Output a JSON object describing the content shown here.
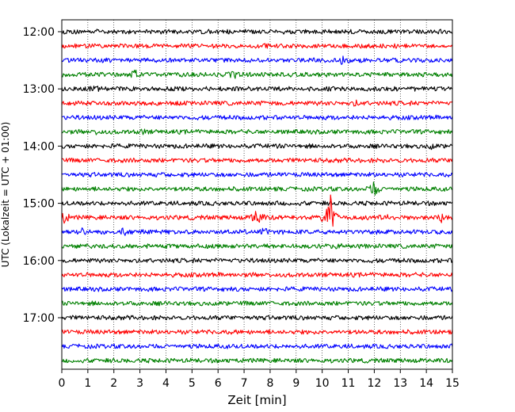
{
  "chart_data": {
    "type": "line",
    "xlabel": "Zeit  [min]",
    "ylabel": "UTC (Lokalzeit = UTC + 01:00)",
    "xlim": [
      0,
      15
    ],
    "x_ticks": [
      "0",
      "1",
      "2",
      "3",
      "4",
      "5",
      "6",
      "7",
      "8",
      "9",
      "10",
      "11",
      "12",
      "13",
      "14",
      "15"
    ],
    "y_ticks": [
      "12:00",
      "13:00",
      "14:00",
      "15:00",
      "16:00",
      "17:00"
    ],
    "grid": "vertical dotted",
    "colors": [
      "#000000",
      "#ff0000",
      "#0000ff",
      "#008000"
    ],
    "traces": [
      {
        "start": "12:00",
        "color": "#000000",
        "events": [
          {
            "t": 1.5,
            "amp": 0.15
          }
        ]
      },
      {
        "start": "12:15",
        "color": "#ff0000",
        "events": [
          {
            "t": 7.8,
            "amp": 0.2
          }
        ]
      },
      {
        "start": "12:30",
        "color": "#0000ff",
        "events": [
          {
            "t": 10.8,
            "amp": 0.35
          }
        ]
      },
      {
        "start": "12:45",
        "color": "#008000",
        "events": [
          {
            "t": 2.8,
            "amp": 0.4
          },
          {
            "t": 6.6,
            "amp": 0.3
          }
        ]
      },
      {
        "start": "13:00",
        "color": "#000000",
        "events": [
          {
            "t": 1.3,
            "amp": 0.15
          }
        ]
      },
      {
        "start": "13:15",
        "color": "#ff0000",
        "events": [
          {
            "t": 11.3,
            "amp": 0.15
          }
        ]
      },
      {
        "start": "13:30",
        "color": "#0000ff",
        "events": []
      },
      {
        "start": "13:45",
        "color": "#008000",
        "events": [
          {
            "t": 1.4,
            "amp": 0.15
          },
          {
            "t": 3.1,
            "amp": 0.15
          }
        ]
      },
      {
        "start": "14:00",
        "color": "#000000",
        "events": [
          {
            "t": 14.2,
            "amp": 0.15
          }
        ]
      },
      {
        "start": "14:15",
        "color": "#ff0000",
        "events": []
      },
      {
        "start": "14:30",
        "color": "#0000ff",
        "events": []
      },
      {
        "start": "14:45",
        "color": "#008000",
        "events": [
          {
            "t": 12.0,
            "amp": 0.7
          }
        ]
      },
      {
        "start": "15:00",
        "color": "#000000",
        "events": []
      },
      {
        "start": "15:15",
        "color": "#ff0000",
        "events": [
          {
            "t": 0.1,
            "amp": 0.5
          },
          {
            "t": 7.5,
            "amp": 0.9
          },
          {
            "t": 10.3,
            "amp": 2.5
          },
          {
            "t": 12.5,
            "amp": 0.4
          },
          {
            "t": 14.6,
            "amp": 0.4
          }
        ]
      },
      {
        "start": "15:30",
        "color": "#0000ff",
        "events": [
          {
            "t": 0.7,
            "amp": 0.45
          },
          {
            "t": 2.4,
            "amp": 0.3
          },
          {
            "t": 7.8,
            "amp": 0.4
          }
        ]
      },
      {
        "start": "15:45",
        "color": "#008000",
        "events": [
          {
            "t": 10.6,
            "amp": 0.15
          }
        ]
      },
      {
        "start": "16:00",
        "color": "#000000",
        "events": []
      },
      {
        "start": "16:15",
        "color": "#ff0000",
        "events": []
      },
      {
        "start": "16:30",
        "color": "#0000ff",
        "events": []
      },
      {
        "start": "16:45",
        "color": "#008000",
        "events": []
      },
      {
        "start": "17:00",
        "color": "#000000",
        "events": []
      },
      {
        "start": "17:15",
        "color": "#ff0000",
        "events": []
      },
      {
        "start": "17:30",
        "color": "#0000ff",
        "events": []
      },
      {
        "start": "17:45",
        "color": "#008000",
        "events": []
      }
    ]
  }
}
